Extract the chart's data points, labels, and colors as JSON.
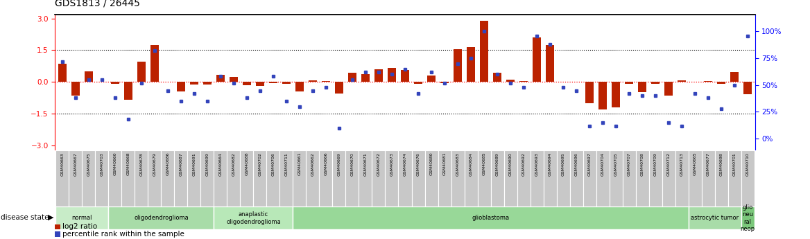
{
  "title": "GDS1813 / 26445",
  "samples": [
    "GSM40663",
    "GSM40667",
    "GSM40675",
    "GSM40703",
    "GSM40660",
    "GSM40668",
    "GSM40678",
    "GSM40679",
    "GSM40686",
    "GSM40687",
    "GSM40691",
    "GSM40699",
    "GSM40664",
    "GSM40682",
    "GSM40688",
    "GSM40702",
    "GSM40706",
    "GSM40711",
    "GSM40661",
    "GSM40662",
    "GSM40666",
    "GSM40669",
    "GSM40670",
    "GSM40671",
    "GSM40672",
    "GSM40673",
    "GSM40674",
    "GSM40676",
    "GSM40680",
    "GSM40681",
    "GSM40683",
    "GSM40684",
    "GSM40685",
    "GSM40689",
    "GSM40690",
    "GSM40692",
    "GSM40693",
    "GSM40694",
    "GSM40695",
    "GSM40696",
    "GSM40697",
    "GSM40704",
    "GSM40705",
    "GSM40707",
    "GSM40708",
    "GSM40709",
    "GSM40712",
    "GSM40713",
    "GSM40665",
    "GSM40677",
    "GSM40698",
    "GSM40701",
    "GSM40710"
  ],
  "log2_ratio": [
    0.85,
    -0.65,
    0.5,
    0.0,
    -0.08,
    -0.85,
    0.95,
    1.75,
    0.0,
    -0.45,
    -0.12,
    -0.12,
    0.35,
    0.25,
    -0.15,
    -0.2,
    -0.05,
    -0.1,
    -0.45,
    0.08,
    0.05,
    -0.55,
    0.42,
    0.38,
    0.6,
    0.65,
    0.55,
    -0.08,
    0.3,
    -0.05,
    1.55,
    1.65,
    2.9,
    0.42,
    0.12,
    0.05,
    2.1,
    1.75,
    0.0,
    0.0,
    -1.0,
    -1.3,
    -1.2,
    -0.1,
    -0.5,
    -0.1,
    -0.65,
    0.08,
    0.0,
    0.05,
    -0.1,
    0.45,
    -0.6
  ],
  "percentile": [
    72,
    38,
    55,
    55,
    38,
    18,
    52,
    82,
    45,
    35,
    42,
    35,
    58,
    52,
    38,
    45,
    58,
    35,
    30,
    45,
    48,
    10,
    55,
    62,
    62,
    60,
    65,
    42,
    62,
    52,
    70,
    75,
    100,
    60,
    52,
    48,
    96,
    88,
    48,
    45,
    12,
    15,
    12,
    42,
    40,
    40,
    15,
    12,
    42,
    38,
    28,
    50,
    96
  ],
  "groups": [
    {
      "label": "normal",
      "start": 0,
      "end": 4,
      "color": "#c8ecc8"
    },
    {
      "label": "oligodendroglioma",
      "start": 4,
      "end": 12,
      "color": "#a8dca8"
    },
    {
      "label": "anaplastic\noligodendroglioma",
      "start": 12,
      "end": 18,
      "color": "#b8e8b8"
    },
    {
      "label": "glioblastoma",
      "start": 18,
      "end": 48,
      "color": "#98d898"
    },
    {
      "label": "astrocytic tumor",
      "start": 48,
      "end": 52,
      "color": "#a8dca8"
    },
    {
      "label": "glio\nneu\nral\nneop",
      "start": 52,
      "end": 53,
      "color": "#7bc87b"
    }
  ],
  "ylim_left": [
    -3.2,
    3.2
  ],
  "yticks_left": [
    -3,
    -1.5,
    0,
    1.5,
    3
  ],
  "ylim_right": [
    0,
    110
  ],
  "yticks_right": [
    0,
    25,
    50,
    75,
    100
  ],
  "bar_color": "#bb2200",
  "dot_color": "#3344bb",
  "bg_color": "#ffffff",
  "title_fontsize": 10,
  "tick_fontsize": 7.5
}
